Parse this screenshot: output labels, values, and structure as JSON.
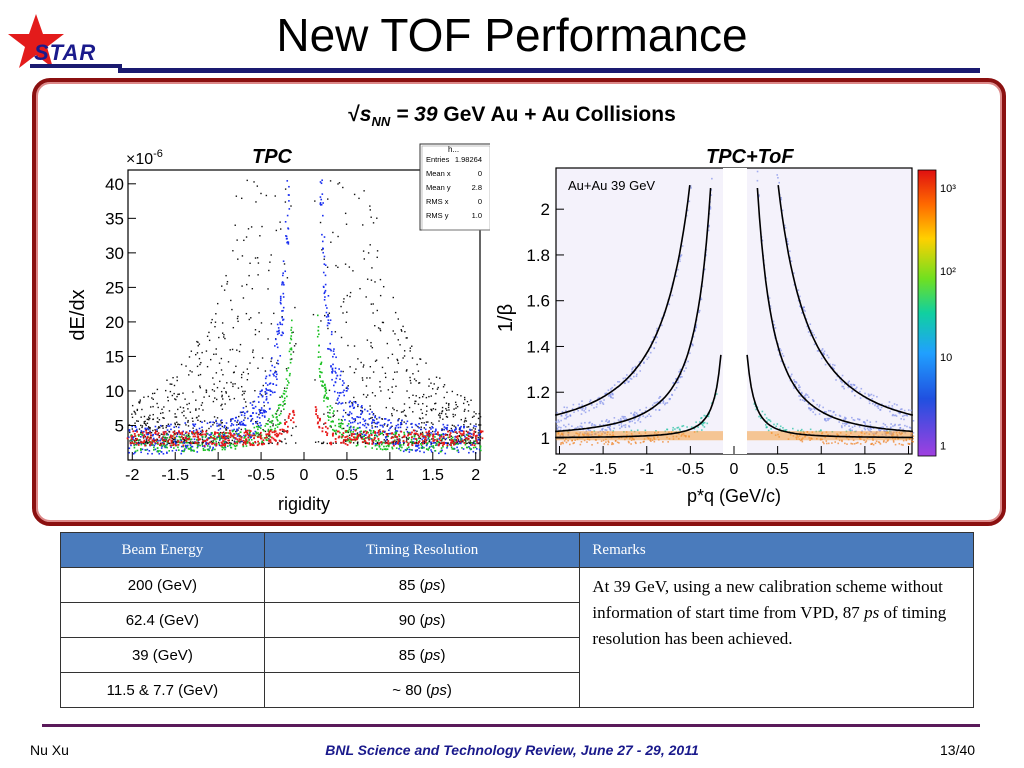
{
  "header": {
    "title": "New TOF Performance",
    "logo_text": "STAR"
  },
  "panel": {
    "sqrt_symbol": "√",
    "s_symbol": "s",
    "nn_sub": "NN",
    "energy_eq": " = 39",
    "heading_rest": " GeV Au + Au Collisions",
    "left_plot": {
      "tag": "TPC",
      "ylabel": "dE/dx",
      "xlabel": "rigidity",
      "y_multiplier": "×10",
      "y_exponent": "-6",
      "yticks": [
        "40",
        "35",
        "30",
        "25",
        "20",
        "15",
        "10",
        "5"
      ],
      "xticks": [
        "-2",
        "-1.5",
        "-1",
        "-0.5",
        "0",
        "0.5",
        "1",
        "1.5",
        "2"
      ],
      "stats_header": "h...",
      "stats": [
        {
          "k": "Entries",
          "v": "1.98264"
        },
        {
          "k": "Mean x",
          "v": "0"
        },
        {
          "k": "Mean y",
          "v": "2.8"
        },
        {
          "k": "RMS x",
          "v": "0"
        },
        {
          "k": "RMS y",
          "v": "1.0"
        }
      ]
    },
    "right_plot": {
      "tag": "TPC+ToF",
      "inner_label": "Au+Au 39 GeV",
      "ylabel": "1/β",
      "xlabel": "p*q (GeV/c)",
      "yticks": [
        "2",
        "1.8",
        "1.6",
        "1.4",
        "1.2",
        "1"
      ],
      "xticks": [
        "-2",
        "-1.5",
        "-1",
        "-0.5",
        "0",
        "0.5",
        "1",
        "1.5",
        "2"
      ],
      "colorbar_ticks": [
        "10³",
        "10²",
        "10",
        "1"
      ]
    }
  },
  "table": {
    "headers": [
      "Beam Energy",
      "Timing Resolution",
      "Remarks"
    ],
    "rows": [
      {
        "energy": "200 (GeV)",
        "res_prefix": "85 (",
        "res_unit": "ps",
        "res_suffix": ")"
      },
      {
        "energy": "62.4 (GeV)",
        "res_prefix": "90 (",
        "res_unit": "ps",
        "res_suffix": ")"
      },
      {
        "energy": "39 (GeV)",
        "res_prefix": "85 (",
        "res_unit": "ps",
        "res_suffix": ")"
      },
      {
        "energy": "11.5 & 7.7 (GeV)",
        "res_prefix": "~ 80 (",
        "res_unit": "ps",
        "res_suffix": ")"
      }
    ],
    "remarks_before": "At 39 GeV, using a new calibration scheme without information of start time from VPD, 87 ",
    "remarks_unit": "ps",
    "remarks_after": " of timing resolution has been achieved."
  },
  "footer": {
    "left": "Nu Xu",
    "center": "BNL Science and Technology Review, June 27 - 29, 2011",
    "right": "13/40"
  },
  "colors": {
    "title_bar": "#1a1a70",
    "panel_border": "#8b1010",
    "table_header": "#4a7bbc",
    "footer_center": "#1a1a8c",
    "star_red": "#e31b1b"
  }
}
